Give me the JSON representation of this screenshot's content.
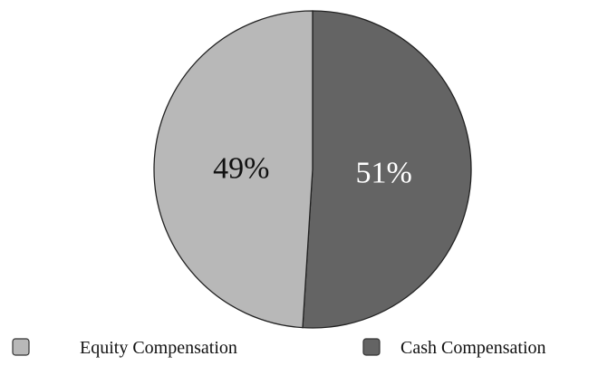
{
  "chart_data": {
    "type": "pie",
    "title": "",
    "slices": [
      {
        "label": "Cash Compensation",
        "value": 51,
        "display": "51%",
        "color": "#646464",
        "label_color": "#ffffff"
      },
      {
        "label": "Equity Compensation",
        "value": 49,
        "display": "49%",
        "color": "#b8b8b8",
        "label_color": "#111111"
      }
    ],
    "legend": {
      "placement": "bottom",
      "entries": [
        "Equity Compensation",
        "Cash Compensation"
      ]
    }
  }
}
